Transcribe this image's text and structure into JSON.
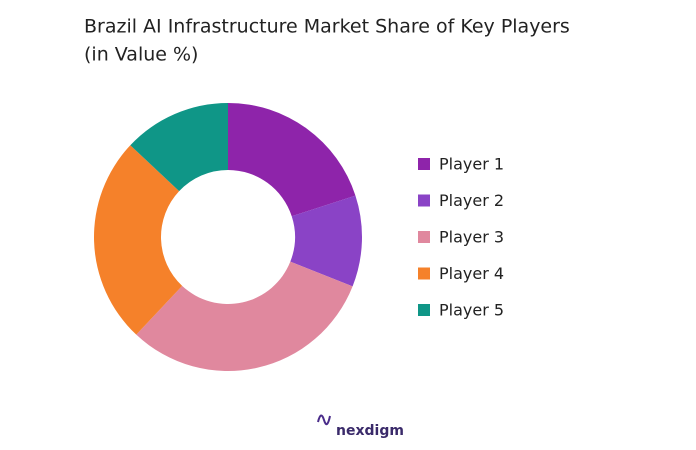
{
  "chart_data": {
    "type": "donut",
    "title": "Brazil AI Infrastructure Market Share of Key Players",
    "subtitle": "(in Value %)",
    "categories": [
      "Player 1",
      "Player 2",
      "Player 3",
      "Player 4",
      "Player 5"
    ],
    "values": [
      20,
      11,
      31,
      25,
      13
    ],
    "colors": [
      "#8e24aa",
      "#8a43c6",
      "#e0889e",
      "#f5812a",
      "#0f9687"
    ],
    "legend": "right",
    "watermark": "nexdigm"
  }
}
